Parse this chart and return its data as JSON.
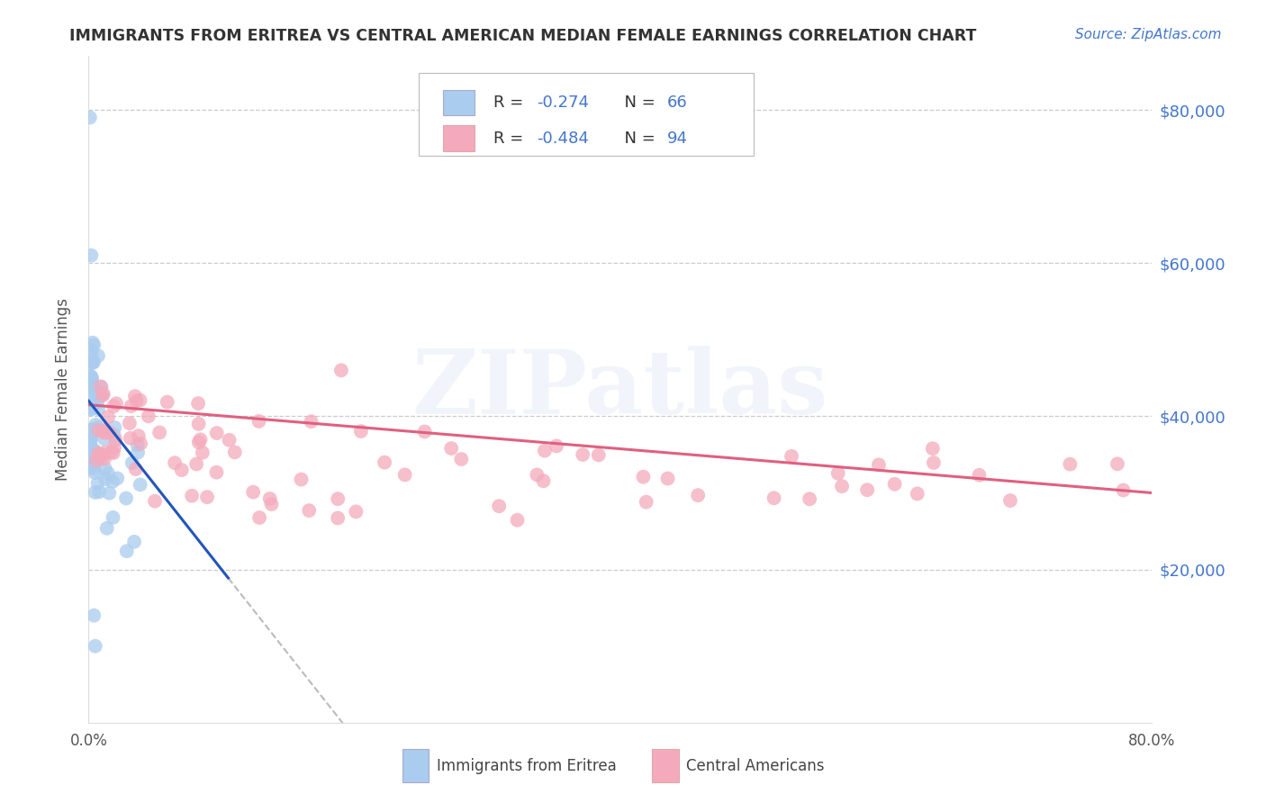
{
  "title": "IMMIGRANTS FROM ERITREA VS CENTRAL AMERICAN MEDIAN FEMALE EARNINGS CORRELATION CHART",
  "source": "Source: ZipAtlas.com",
  "ylabel": "Median Female Earnings",
  "xlim": [
    0.0,
    0.8
  ],
  "ylim": [
    0,
    87000
  ],
  "yticks": [
    0,
    20000,
    40000,
    60000,
    80000
  ],
  "xticks": [
    0.0,
    0.1,
    0.2,
    0.3,
    0.4,
    0.5,
    0.6,
    0.7,
    0.8
  ],
  "xtick_labels": [
    "0.0%",
    "",
    "",
    "",
    "",
    "",
    "",
    "",
    "80.0%"
  ],
  "ytick_right_labels": [
    "$20,000",
    "$40,000",
    "$60,000",
    "$80,000"
  ],
  "legend_R1": "-0.274",
  "legend_N1": "66",
  "legend_R2": "-0.484",
  "legend_N2": "94",
  "color_eritrea": "#aaccee",
  "color_central": "#f4aabc",
  "color_eritrea_line": "#2255bb",
  "color_central_line": "#e06080",
  "color_blue_text": "#4477cc",
  "color_right_axis": "#4477cc",
  "watermark_text": "ZIPatlas",
  "bottom_label1": "Immigrants from Eritrea",
  "bottom_label2": "Central Americans"
}
